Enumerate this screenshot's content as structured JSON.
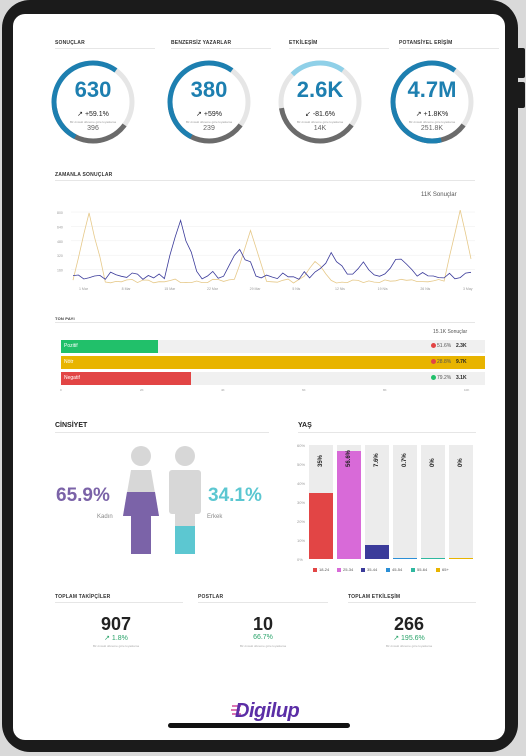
{
  "kpis": [
    {
      "label": "SONUÇLAR",
      "value": "630",
      "change": "+59.1%",
      "direction": "up",
      "subtitle": "Bir önceki döneme göre kıyaslama",
      "previous": "396",
      "arc_fill": 0.7,
      "color": "#1d7fb0"
    },
    {
      "label": "BENZERSİZ YAZARLAR",
      "value": "380",
      "change": "+59%",
      "direction": "up",
      "subtitle": "Bir önceki döneme göre kıyaslama",
      "previous": "239",
      "arc_fill": 0.7,
      "color": "#1d7fb0"
    },
    {
      "label": "ETKİLEŞİM",
      "value": "2.6K",
      "change": "-81.6%",
      "direction": "down",
      "subtitle": "Bir önceki döneme göre kıyaslama",
      "previous": "14K",
      "arc_fill": 0.3,
      "color": "#1d7fb0"
    },
    {
      "label": "POTANSİYEL ERİŞİM",
      "value": "4.7M",
      "change": "+1.8K%",
      "direction": "up",
      "subtitle": "Bir önceki döneme göre kıyaslama",
      "previous": "251.8K",
      "arc_fill": 0.85,
      "color": "#1d7fb0"
    }
  ],
  "timeline": {
    "title": "ZAMANLA SONUÇLAR",
    "total": "11K Sonuçlar",
    "y_ticks": [
      "800",
      "640",
      "480",
      "320",
      "160"
    ],
    "x_ticks": [
      "1 Mar",
      "8 Mar",
      "15 Mar",
      "22 Mar",
      "29 Mar",
      "5 Nis",
      "12 Nis",
      "19 Nis",
      "26 Nis",
      "3 May"
    ],
    "colors": {
      "current": "#3b3b9a",
      "previous": "#e6c98a"
    }
  },
  "tone": {
    "title": "TON PAYI",
    "total": "15.1K Sonuçlar",
    "rows": [
      {
        "label": "Pozitif",
        "fill": 0.23,
        "color": "#21c06a",
        "pct": "51.6%",
        "pct_dir": "down",
        "value": "2.3K"
      },
      {
        "label": "Nötr",
        "fill": 1.0,
        "color": "#e8b400",
        "pct": "28.8%",
        "pct_dir": "down",
        "value": "9.7K"
      },
      {
        "label": "Negatif",
        "fill": 0.31,
        "color": "#e24545",
        "pct": "79.2%",
        "pct_dir": "up",
        "value": "3.1K"
      }
    ],
    "x_ticks": [
      "0",
      "2K",
      "4K",
      "6K",
      "8K",
      "10K"
    ]
  },
  "gender": {
    "title": "CİNSİYET",
    "female": {
      "pct": "65.9%",
      "label": "Kadın",
      "color": "#7b63a8"
    },
    "male": {
      "pct": "34.1%",
      "label": "Erkek",
      "color": "#5cc7d1"
    }
  },
  "age": {
    "title": "YAŞ",
    "y_ticks": [
      "60%",
      "50%",
      "40%",
      "30%",
      "20%",
      "10%",
      "0%"
    ],
    "bars": [
      {
        "range": "18-24",
        "pct": "35%",
        "value": 0.35,
        "color": "#e24545"
      },
      {
        "range": "25-34",
        "pct": "56.6%",
        "value": 0.566,
        "color": "#d86ad8"
      },
      {
        "range": "35-44",
        "pct": "7.6%",
        "value": 0.076,
        "color": "#3b3b9a"
      },
      {
        "range": "45-54",
        "pct": "0.7%",
        "value": 0.007,
        "color": "#2b8fd6"
      },
      {
        "range": "55-64",
        "pct": "0%",
        "value": 0.0,
        "color": "#2fb8a0"
      },
      {
        "range": "65+",
        "pct": "0%",
        "value": 0.0,
        "color": "#e8b400"
      }
    ]
  },
  "footer_stats": [
    {
      "label": "TOPLAM TAKİPÇİLER",
      "value": "907",
      "change": "1.8%",
      "subtitle": "Bir önceki döneme göre kıyaslama"
    },
    {
      "label": "POSTLAR",
      "value": "10",
      "change": "66.7%",
      "subtitle": "Bir önceki döneme göre kıyaslama"
    },
    {
      "label": "TOPLAM ETKİLEŞİM",
      "value": "266",
      "change": "195.6%",
      "subtitle": "Bir önceki döneme göre kıyaslama"
    }
  ],
  "brand": {
    "name": "Digilup"
  }
}
